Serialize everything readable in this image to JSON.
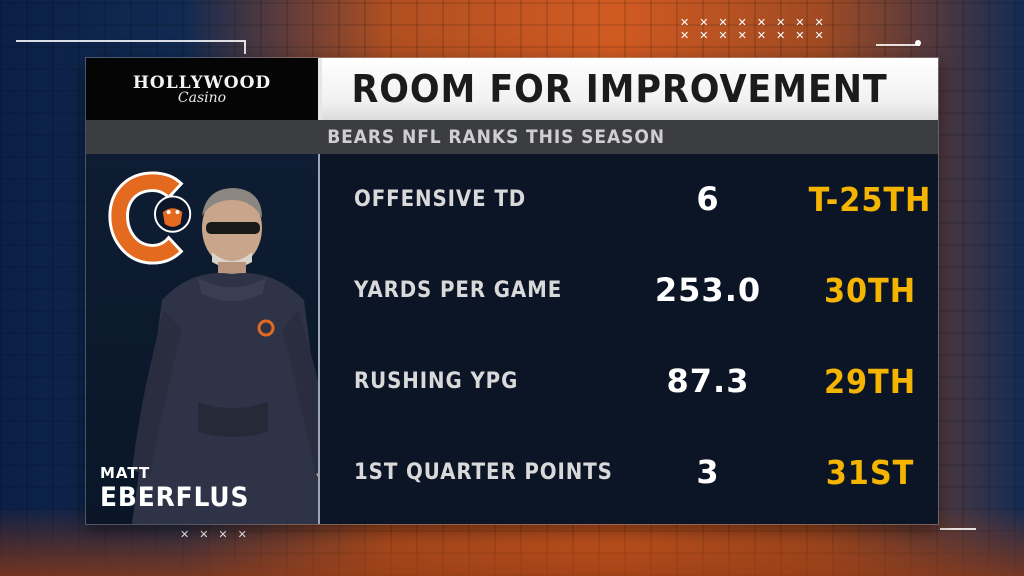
{
  "sponsor": {
    "line1": "HOLLYWOOD",
    "line2": "Casino"
  },
  "header": {
    "title": "ROOM FOR IMPROVEMENT",
    "subtitle": "BEARS NFL RANKS THIS SEASON"
  },
  "coach": {
    "first_name": "MATT",
    "last_name": "EBERFLUS"
  },
  "stats": [
    {
      "label": "OFFENSIVE TD",
      "value": "6",
      "rank": "T-25TH"
    },
    {
      "label": "YARDS PER GAME",
      "value": "253.0",
      "rank": "30TH"
    },
    {
      "label": "RUSHING YPG",
      "value": "87.3",
      "rank": "29TH"
    },
    {
      "label": "1ST QUARTER POINTS",
      "value": "3",
      "rank": "31ST"
    }
  ],
  "colors": {
    "rank": "#f4b400",
    "bears_orange": "#e36a1f",
    "panel": "#0b1526",
    "title_bg": "#f1f1f1"
  },
  "icons": [
    "bears-logo-icon"
  ]
}
